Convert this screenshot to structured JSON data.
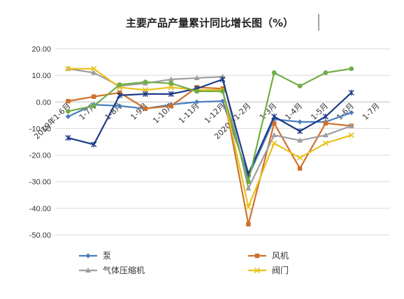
{
  "chart_data": {
    "type": "line",
    "title": "主要产品产量累计同比增长图（%）",
    "xlabel": "",
    "ylabel": "",
    "ylim": [
      -50,
      20
    ],
    "ytick_labels": [
      "20.00",
      "10.00",
      "0.00",
      "-10.00",
      "-20.00",
      "-30.00",
      "-40.00",
      "-50.00"
    ],
    "ytick_values": [
      20,
      10,
      0,
      -10,
      -20,
      -30,
      -40,
      -50
    ],
    "categories": [
      "2019年1-6月",
      "1-7月",
      "1-8月",
      "1-9月",
      "1-10月",
      "1-11月",
      "1-12月",
      "2020年1-2月",
      "1-3月",
      "1-4月",
      "1-5月",
      "1-6月",
      "1-7月"
    ],
    "grid": true,
    "legend_position": "bottom",
    "series": [
      {
        "name": "泵",
        "color": "#4a7ebb",
        "marker": "diamond",
        "values": [
          -5.5,
          -1,
          -1.5,
          -2.5,
          -1,
          0,
          0.3,
          -28,
          -6.5,
          -7.5,
          -7.5,
          -4,
          null
        ]
      },
      {
        "name": "风机",
        "color": "#d0702c",
        "marker": "square",
        "values": [
          0.3,
          2,
          3.5,
          -2.5,
          -1.5,
          5.5,
          5,
          -46,
          -8,
          -25,
          -8,
          -9,
          null
        ]
      },
      {
        "name": "气体压缩机",
        "color": "#9e9e9e",
        "marker": "triangle",
        "values": [
          12.5,
          11,
          6,
          7,
          8.5,
          9,
          9.5,
          -32.5,
          -12.5,
          -14.5,
          -12.5,
          -9,
          null
        ]
      },
      {
        "name": "阀门",
        "color": "#e8c21c",
        "marker": "x",
        "values": [
          12.5,
          12.5,
          5.5,
          4.5,
          5.5,
          4.5,
          4.5,
          -39.5,
          -15.5,
          -21,
          -15.5,
          -12.5,
          null
        ]
      },
      {
        "name": "",
        "color": "#1f3c88",
        "marker": "star",
        "values": [
          -13.5,
          -16,
          2.5,
          3,
          3,
          5,
          8.5,
          -27,
          -5.5,
          -11,
          -5.5,
          3.5,
          null
        ]
      },
      {
        "name": "",
        "color": "#70ad47",
        "marker": "circle",
        "values": [
          -3.5,
          -1.5,
          6.5,
          7.5,
          7,
          4,
          4,
          -30,
          11,
          6,
          11,
          12.5,
          null
        ]
      }
    ]
  }
}
